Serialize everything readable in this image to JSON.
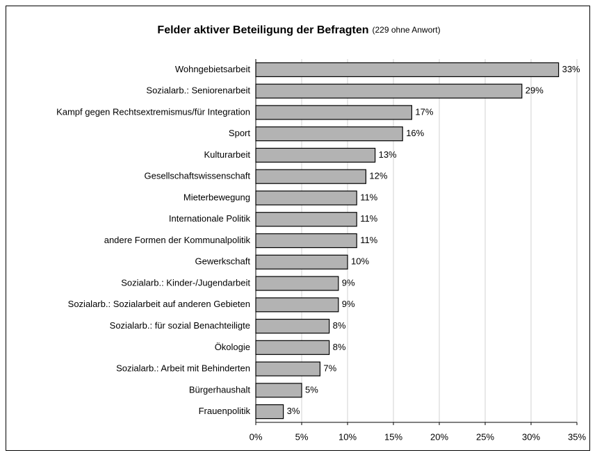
{
  "chart_data": {
    "type": "bar",
    "orientation": "horizontal",
    "title": "Felder aktiver Beteiligung der Befragten",
    "subtitle": "(229 ohne Anwort)",
    "categories": [
      "Wohngebietsarbeit",
      "Sozialarb.:  Seniorenarbeit",
      "Kampf gegen Rechtsextremismus/für Integration",
      "Sport",
      "Kulturarbeit",
      "Gesellschaftswissenschaft",
      "Mieterbewegung",
      "Internationale Politik",
      "andere Formen der Kommunalpolitik",
      "Gewerkschaft",
      "Sozialarb.:  Kinder-/Jugendarbeit",
      "Sozialarb.:  Sozialarbeit auf anderen Gebieten",
      "Sozialarb.:  für sozial Benachteiligte",
      "Ökologie",
      "Sozialarb.: Arbeit mit Behinderten",
      "Bürgerhaushalt",
      "Frauenpolitik"
    ],
    "values": [
      33,
      29,
      17,
      16,
      13,
      12,
      11,
      11,
      11,
      10,
      9,
      9,
      8,
      8,
      7,
      5,
      3
    ],
    "value_labels": [
      "33%",
      "29%",
      "17%",
      "16%",
      "13%",
      "12%",
      "11%",
      "11%",
      "11%",
      "10%",
      "9%",
      "9%",
      "8%",
      "8%",
      "7%",
      "5%",
      "3%"
    ],
    "color": "#b3b3b3",
    "xlim": [
      0,
      35
    ],
    "xticks": [
      {
        "value": 0,
        "label": "0%"
      },
      {
        "value": 5,
        "label": "5%"
      },
      {
        "value": 10,
        "label": "10%"
      },
      {
        "value": 15,
        "label": "15%"
      },
      {
        "value": 20,
        "label": "20%"
      },
      {
        "value": 25,
        "label": "25%"
      },
      {
        "value": 30,
        "label": "30%"
      },
      {
        "value": 35,
        "label": "35%"
      }
    ],
    "grid": true
  }
}
